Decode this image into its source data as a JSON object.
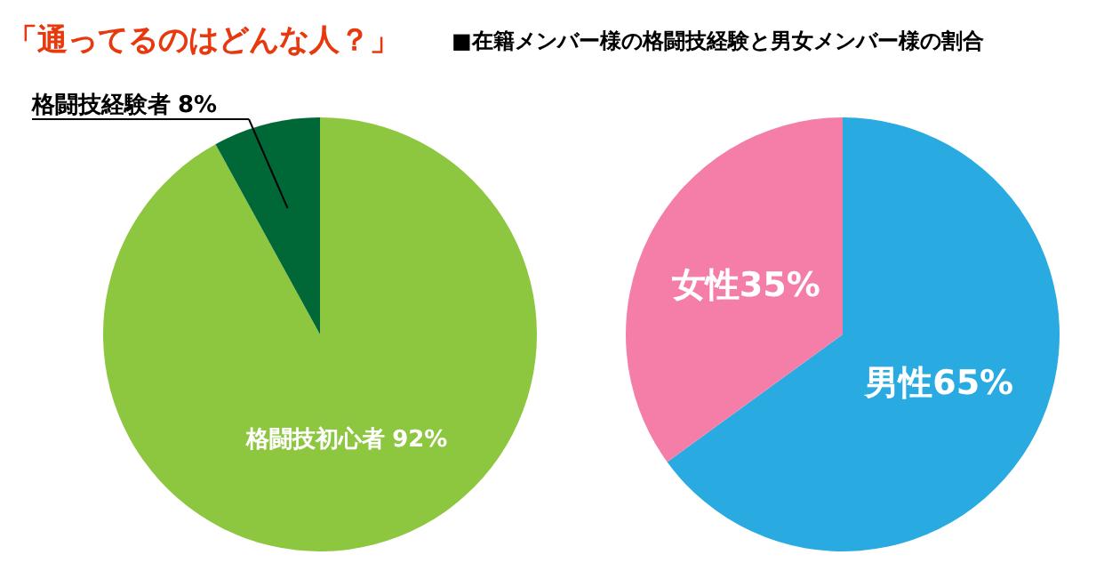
{
  "chart_data": [
    {
      "type": "pie",
      "title": "「通ってるのはどんな人？」",
      "categories": [
        "格闘技初心者",
        "格闘技経験者"
      ],
      "values": [
        92,
        8
      ],
      "value_labels": [
        "92%",
        "8%"
      ],
      "colors": [
        "#8dc63f",
        "#006837"
      ]
    },
    {
      "type": "pie",
      "title": "■在籍メンバー様の格闘技経験と男女メンバー様の割合",
      "categories": [
        "男性",
        "女性"
      ],
      "values": [
        65,
        35
      ],
      "value_labels": [
        "65%",
        "35%"
      ],
      "colors": [
        "#29abe2",
        "#f57ea9"
      ]
    }
  ]
}
